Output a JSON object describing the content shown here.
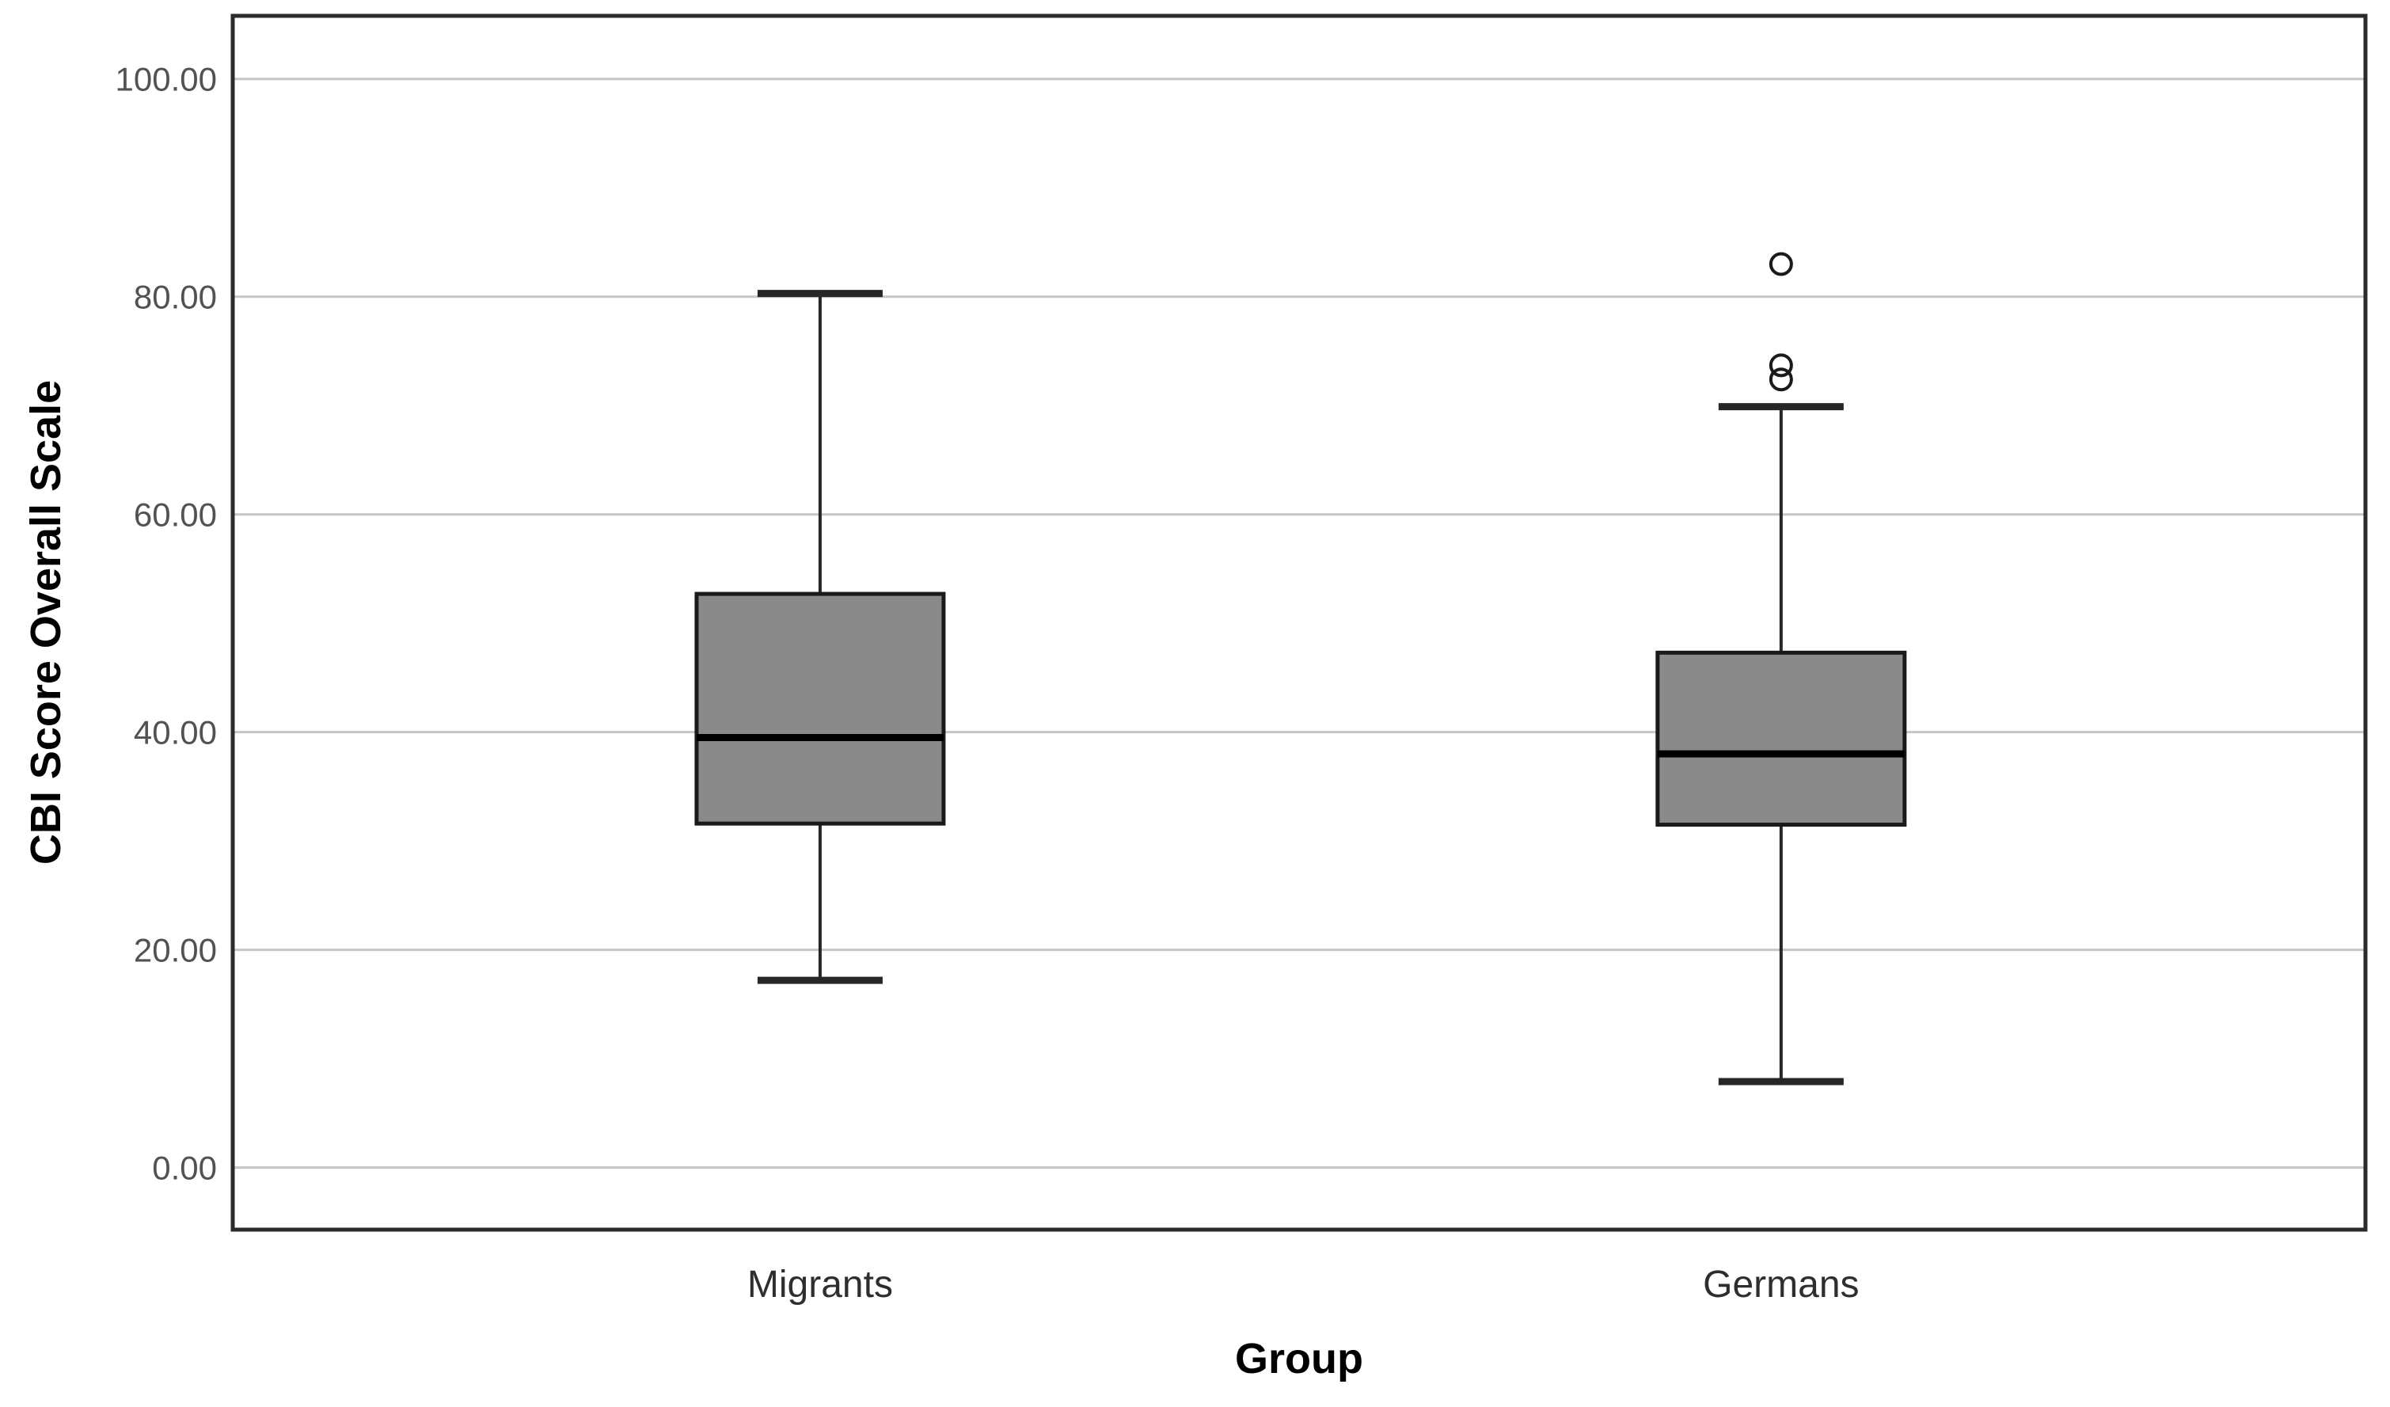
{
  "figure": {
    "background": "#ffffff"
  },
  "chart_data": {
    "type": "boxplot",
    "title": "",
    "xlabel": "Group",
    "ylabel": "CBI Score Overall Scale",
    "categories": [
      "Migrants",
      "Germans"
    ],
    "y_ticks": [
      {
        "value": 0,
        "label": "0.00"
      },
      {
        "value": 20,
        "label": "20.00"
      },
      {
        "value": 40,
        "label": "40.00"
      },
      {
        "value": 60,
        "label": "60.00"
      },
      {
        "value": 80,
        "label": "80.00"
      },
      {
        "value": 100,
        "label": "100.00"
      }
    ],
    "ylim": [
      -5.7,
      105.8
    ],
    "grid": true,
    "legend": "none",
    "outlier_marker": "open-circle",
    "series": [
      {
        "name": "Migrants",
        "whisker_low": 17.2,
        "q1": 31.6,
        "median": 39.5,
        "q3": 52.7,
        "whisker_high": 80.3,
        "outliers": []
      },
      {
        "name": "Germans",
        "whisker_low": 7.9,
        "q1": 31.5,
        "median": 38.0,
        "q3": 47.3,
        "whisker_high": 69.9,
        "outliers": [
          72.4,
          73.7,
          83.0
        ]
      }
    ],
    "colors": {
      "box_fill": "#8a8a8a",
      "box_border": "#1a1a1a",
      "median_line": "#000000",
      "whisker": "#262626",
      "gridline": "#c6c6c6",
      "frame": "#2b2b2b",
      "tick_label": "#525252",
      "category_label": "#2e2e2e",
      "axis_title": "#000000",
      "outlier_stroke": "#1a1a1a"
    }
  }
}
